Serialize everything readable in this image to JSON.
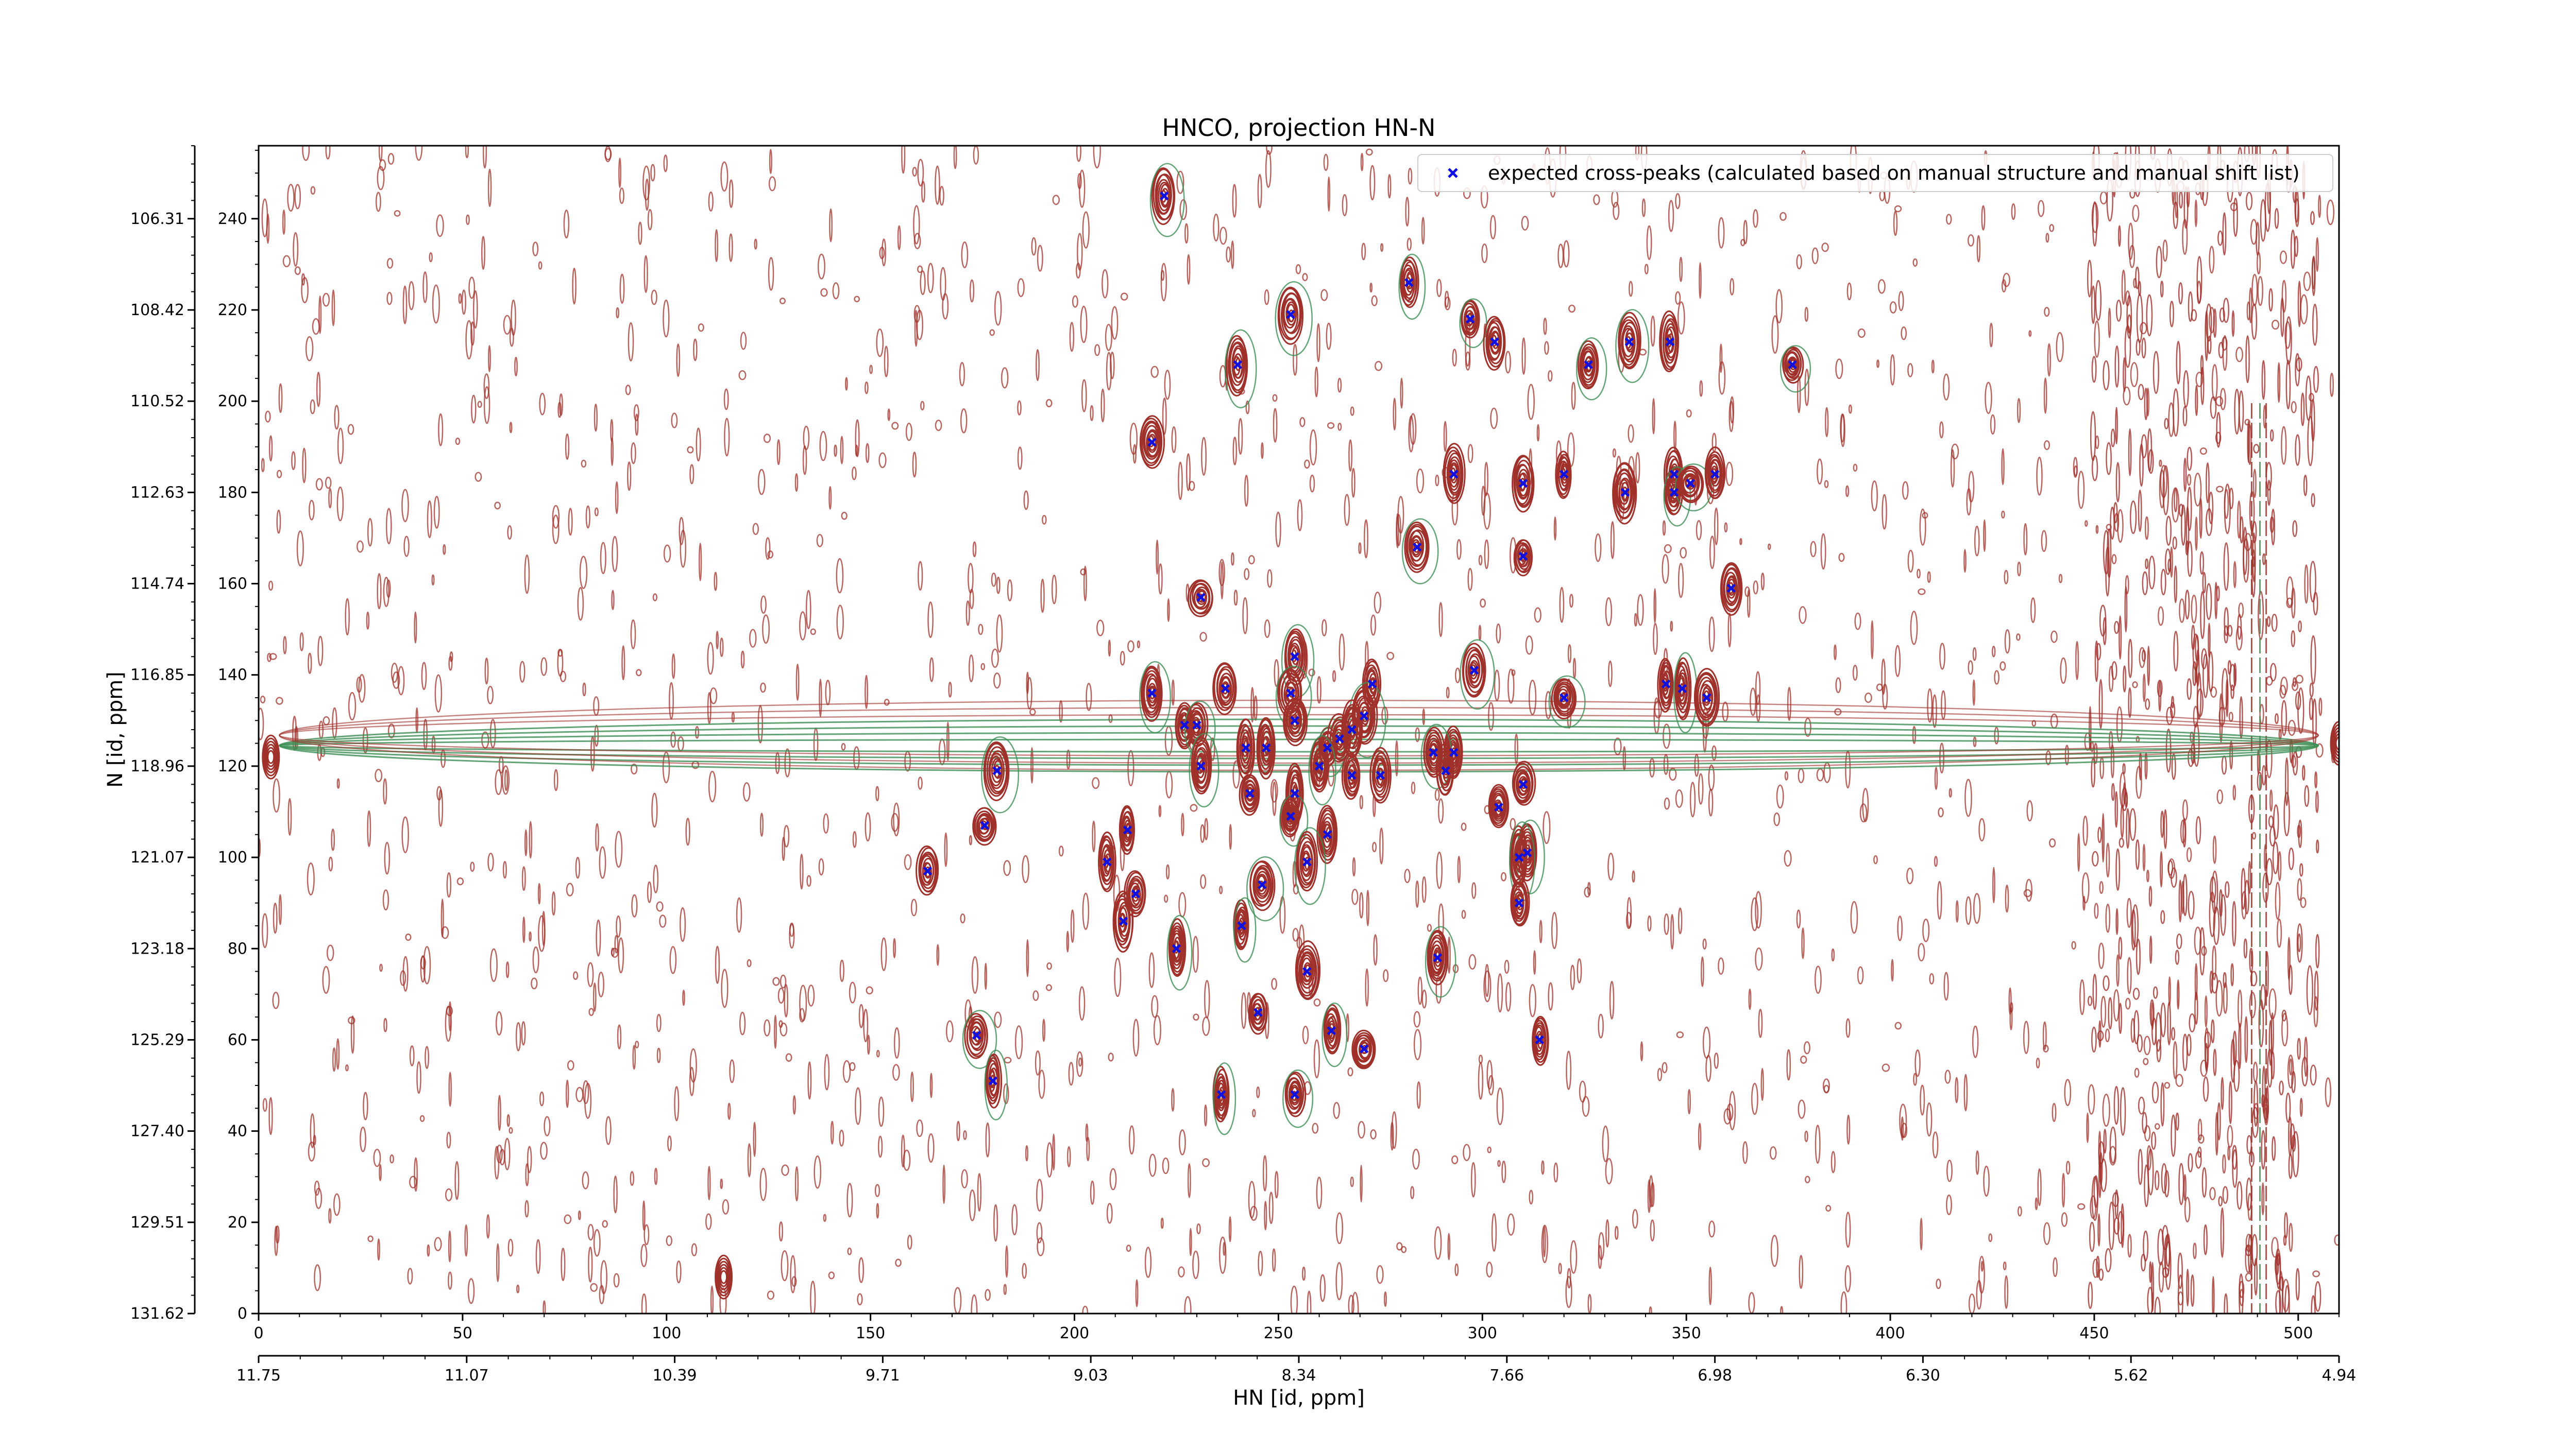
{
  "chart_data": {
    "type": "scatter",
    "title": "HNCO, projection HN-N",
    "xlabel": "HN [id, ppm]",
    "ylabel": "N [id, ppm]",
    "xlim": [
      0,
      510
    ],
    "ylim": [
      0,
      256
    ],
    "x_index_ticks": [
      0,
      50,
      100,
      150,
      200,
      250,
      300,
      350,
      400,
      450,
      500
    ],
    "x_ppm_ticks": [
      {
        "pos": 0,
        "label": "11.75"
      },
      {
        "pos": 55.6,
        "label": "11.07"
      },
      {
        "pos": 111.2,
        "label": "10.39"
      },
      {
        "pos": 166.8,
        "label": "9.71"
      },
      {
        "pos": 222.4,
        "label": "9.03"
      },
      {
        "pos": 278,
        "label": "8.34"
      },
      {
        "pos": 333.6,
        "label": "7.66"
      },
      {
        "pos": 389.2,
        "label": "6.98"
      },
      {
        "pos": 444.8,
        "label": "6.30"
      },
      {
        "pos": 500.4,
        "label": "5.62"
      },
      {
        "pos": 556,
        "label": "4.94"
      }
    ],
    "y_index_ticks": [
      0,
      20,
      40,
      60,
      80,
      100,
      120,
      140,
      160,
      180,
      200,
      220,
      240
    ],
    "y_ppm_ticks": [
      {
        "pos": 0,
        "label": "131.62"
      },
      {
        "pos": 20,
        "label": "129.51"
      },
      {
        "pos": 40,
        "label": "127.40"
      },
      {
        "pos": 60,
        "label": "125.29"
      },
      {
        "pos": 80,
        "label": "123.18"
      },
      {
        "pos": 100,
        "label": "121.07"
      },
      {
        "pos": 120,
        "label": "118.96"
      },
      {
        "pos": 140,
        "label": "116.85"
      },
      {
        "pos": 160,
        "label": "114.74"
      },
      {
        "pos": 180,
        "label": "112.63"
      },
      {
        "pos": 200,
        "label": "110.52"
      },
      {
        "pos": 220,
        "label": "108.42"
      },
      {
        "pos": 240,
        "label": "106.31"
      }
    ],
    "legend": {
      "position": "top-right",
      "label": "expected cross-peaks (calculated based on manual structure and manual shift list)"
    },
    "series": [
      {
        "name": "expected cross-peaks (calculated based on manual structure and manual shift list)",
        "color": "#1010e0",
        "marker": "x",
        "points": [
          [
            222,
            245
          ],
          [
            282,
            226
          ],
          [
            253,
            219
          ],
          [
            297,
            218
          ],
          [
            303,
            213
          ],
          [
            240,
            208
          ],
          [
            326,
            208
          ],
          [
            336,
            213
          ],
          [
            346,
            213
          ],
          [
            376,
            208
          ],
          [
            219,
            191
          ],
          [
            293,
            184
          ],
          [
            310,
            182
          ],
          [
            320,
            184
          ],
          [
            335,
            180
          ],
          [
            347,
            184
          ],
          [
            347,
            180
          ],
          [
            351,
            182
          ],
          [
            357,
            184
          ],
          [
            284,
            168
          ],
          [
            310,
            166
          ],
          [
            231,
            157
          ],
          [
            361,
            159
          ],
          [
            298,
            141
          ],
          [
            219,
            136
          ],
          [
            237,
            137
          ],
          [
            254,
            144
          ],
          [
            273,
            138
          ],
          [
            253,
            136
          ],
          [
            320,
            135
          ],
          [
            345,
            138
          ],
          [
            349,
            137
          ],
          [
            355,
            135
          ],
          [
            254,
            130
          ],
          [
            271,
            131
          ],
          [
            227,
            129
          ],
          [
            230,
            129
          ],
          [
            242,
            124
          ],
          [
            247,
            124
          ],
          [
            262,
            124
          ],
          [
            265,
            126
          ],
          [
            268,
            128
          ],
          [
            293,
            123
          ],
          [
            288,
            123
          ],
          [
            291,
            119
          ],
          [
            231,
            120
          ],
          [
            181,
            119
          ],
          [
            243,
            114
          ],
          [
            254,
            114
          ],
          [
            260,
            120
          ],
          [
            268,
            118
          ],
          [
            275,
            118
          ],
          [
            253,
            109
          ],
          [
            262,
            105
          ],
          [
            310,
            116
          ],
          [
            304,
            111
          ],
          [
            178,
            107
          ],
          [
            213,
            106
          ],
          [
            208,
            99
          ],
          [
            257,
            99
          ],
          [
            311,
            101
          ],
          [
            309,
            100
          ],
          [
            164,
            97
          ],
          [
            246,
            94
          ],
          [
            215,
            92
          ],
          [
            212,
            86
          ],
          [
            241,
            85
          ],
          [
            225,
            80
          ],
          [
            289,
            78
          ],
          [
            257,
            75
          ],
          [
            309,
            90
          ],
          [
            176,
            61
          ],
          [
            245,
            66
          ],
          [
            263,
            62
          ],
          [
            271,
            58
          ],
          [
            314,
            60
          ],
          [
            180,
            51
          ],
          [
            236,
            48
          ],
          [
            254,
            48
          ]
        ]
      }
    ]
  }
}
